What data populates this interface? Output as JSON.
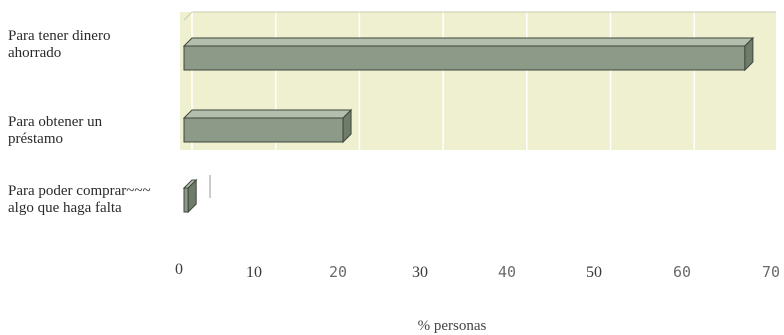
{
  "chart_data": {
    "type": "bar",
    "orientation": "horizontal",
    "style": "3d",
    "categories": [
      "Para tener dinero ahorrado",
      "Para obtener un préstamo",
      "Para poder comprar algo que haga falta"
    ],
    "category_lines": [
      [
        "Para tener dinero",
        "ahorrado"
      ],
      [
        "Para obtener un",
        "préstamo"
      ],
      [
        "Para poder comprar~~~",
        "algo que haga falta"
      ]
    ],
    "values": [
      67,
      19,
      0.5
    ],
    "xlim": [
      0,
      70
    ],
    "xticks": [
      "0",
      "10",
      "20",
      "30",
      "40",
      "50",
      "60",
      "70"
    ],
    "xlabel": "% personas",
    "grid": true,
    "colors": {
      "plot_bg": "#eef0cf",
      "bar_front": "#8c9a87",
      "bar_top": "#b3bfac",
      "bar_side": "#6f7c6a",
      "bar_edge": "#3f463d",
      "grid": "#ffffff"
    }
  }
}
